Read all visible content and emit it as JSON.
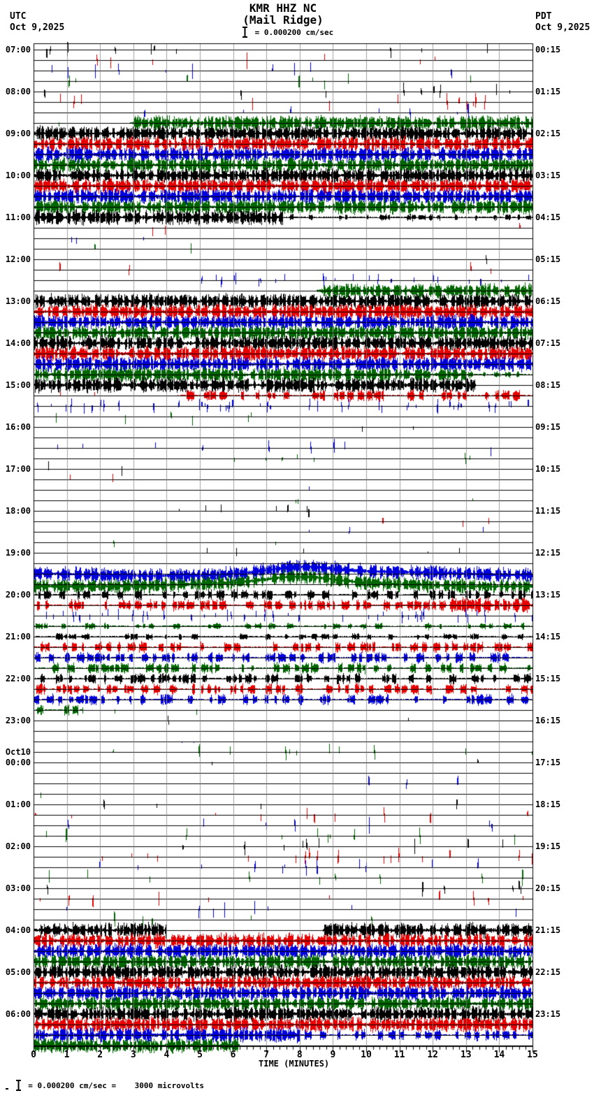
{
  "header": {
    "title_line1": "KMR HHZ NC",
    "title_line2": "(Mail Ridge)",
    "scale_label": "= 0.000200 cm/sec",
    "left_tz": "UTC",
    "left_date": "Oct 9,2025",
    "right_tz": "PDT",
    "right_date": "Oct 9,2025"
  },
  "footer": {
    "scale_label": "= 0.000200 cm/sec =    3000 microvolts"
  },
  "axis": {
    "xlabel": "TIME (MINUTES)",
    "ticks": [
      "0",
      "1",
      "2",
      "3",
      "4",
      "5",
      "6",
      "7",
      "8",
      "9",
      "10",
      "11",
      "12",
      "13",
      "14",
      "15"
    ]
  },
  "colors": {
    "trace_black": "#000000",
    "trace_red": "#e60000",
    "trace_blue": "#0000dd",
    "trace_green": "#006600",
    "grid": "#808080",
    "frame": "#000000"
  },
  "chart_data": {
    "type": "line",
    "subtype": "helicorder-seismogram",
    "station": "KMR HHZ NC",
    "station_name": "Mail Ridge",
    "left_time_zone": "UTC",
    "right_time_zone": "PDT",
    "date_left": "Oct 9,2025",
    "date_right": "Oct 9,2025",
    "amplitude_scale": "0.000200 cm/sec",
    "amplitude_equivalence": "3000 microvolts",
    "xlabel": "TIME (MINUTES)",
    "x_range": [
      0,
      15
    ],
    "minutes_per_row": 15,
    "rows_count": 96,
    "grid": true,
    "color_cycle": [
      "black",
      "red",
      "blue",
      "green"
    ],
    "levels_legend": {
      "f": "flat quiet trace",
      "t": "quiet with rare tiny spikes",
      "s": "scattered telemetry spikes",
      "h": "frequent spikes",
      "m": "moderate bursty noise",
      "a": "strong bursty noise",
      "S": "saturated clipped signal",
      "n": "no data"
    },
    "rows": [
      {
        "seg": [
          [
            0,
            15,
            "s"
          ]
        ],
        "ul": "07:00",
        "rl": "00:15"
      },
      {
        "seg": [
          [
            0,
            15,
            "s"
          ]
        ]
      },
      {
        "seg": [
          [
            0,
            15,
            "s"
          ]
        ]
      },
      {
        "seg": [
          [
            0,
            15,
            "s"
          ]
        ]
      },
      {
        "seg": [
          [
            0,
            15,
            "s"
          ]
        ],
        "ul": "08:00",
        "rl": "01:15"
      },
      {
        "seg": [
          [
            0,
            15,
            "s"
          ]
        ]
      },
      {
        "seg": [
          [
            0,
            15,
            "s"
          ]
        ]
      },
      {
        "seg": [
          [
            0,
            2.9,
            "t"
          ],
          [
            2.9,
            15,
            "S"
          ]
        ]
      },
      {
        "seg": [
          [
            0,
            15,
            "S"
          ]
        ],
        "ul": "09:00",
        "rl": "02:15"
      },
      {
        "seg": [
          [
            0,
            15,
            "S"
          ]
        ]
      },
      {
        "seg": [
          [
            0,
            15,
            "S"
          ]
        ]
      },
      {
        "seg": [
          [
            0,
            15,
            "S"
          ]
        ]
      },
      {
        "seg": [
          [
            0,
            15,
            "S"
          ]
        ],
        "ul": "10:00",
        "rl": "03:15"
      },
      {
        "seg": [
          [
            0,
            15,
            "S"
          ]
        ]
      },
      {
        "seg": [
          [
            0,
            15,
            "S"
          ]
        ]
      },
      {
        "seg": [
          [
            0,
            15,
            "S"
          ]
        ]
      },
      {
        "seg": [
          [
            0,
            7.5,
            "S"
          ],
          [
            7.5,
            15,
            "m"
          ]
        ],
        "ul": "11:00",
        "rl": "04:15"
      },
      {
        "seg": [
          [
            0,
            5,
            "s"
          ],
          [
            5,
            15,
            "t"
          ]
        ]
      },
      {
        "seg": [
          [
            0,
            15,
            "t"
          ]
        ]
      },
      {
        "seg": [
          [
            0,
            15,
            "t"
          ]
        ]
      },
      {
        "seg": [
          [
            0,
            13,
            "f"
          ],
          [
            13,
            15,
            "t"
          ]
        ],
        "ul": "12:00",
        "rl": "05:15"
      },
      {
        "seg": [
          [
            0,
            6,
            "s"
          ],
          [
            6,
            12,
            "t"
          ],
          [
            12,
            14.5,
            "s"
          ],
          [
            14.5,
            15,
            "f"
          ]
        ]
      },
      {
        "seg": [
          [
            0,
            4.8,
            "t"
          ],
          [
            4.8,
            15,
            "h"
          ]
        ]
      },
      {
        "seg": [
          [
            0,
            8.5,
            "f"
          ],
          [
            8.5,
            15,
            "S"
          ]
        ]
      },
      {
        "seg": [
          [
            0,
            15,
            "S"
          ]
        ],
        "ul": "13:00",
        "rl": "06:15"
      },
      {
        "seg": [
          [
            0,
            15,
            "S"
          ]
        ]
      },
      {
        "seg": [
          [
            0,
            15,
            "S"
          ]
        ]
      },
      {
        "seg": [
          [
            0,
            15,
            "S"
          ]
        ]
      },
      {
        "seg": [
          [
            0,
            15,
            "S"
          ]
        ],
        "ul": "14:00",
        "rl": "07:15"
      },
      {
        "seg": [
          [
            0,
            15,
            "S"
          ]
        ]
      },
      {
        "seg": [
          [
            0,
            15,
            "S"
          ]
        ]
      },
      {
        "seg": [
          [
            0,
            13,
            "S"
          ],
          [
            13,
            15,
            "m"
          ]
        ]
      },
      {
        "seg": [
          [
            0,
            13.3,
            "S"
          ],
          [
            13.3,
            15,
            "f"
          ]
        ],
        "ul": "15:00",
        "rl": "08:15"
      },
      {
        "seg": [
          [
            0,
            4.3,
            "t"
          ],
          [
            4.3,
            15,
            "a"
          ]
        ]
      },
      {
        "seg": [
          [
            0,
            15,
            "h"
          ]
        ]
      },
      {
        "seg": [
          [
            0,
            9,
            "s"
          ],
          [
            9,
            15,
            "t"
          ]
        ]
      },
      {
        "seg": [
          [
            0,
            6.5,
            "f"
          ],
          [
            6.5,
            9.5,
            "s"
          ],
          [
            9.5,
            13,
            "t"
          ],
          [
            13,
            15,
            "f"
          ]
        ],
        "ul": "16:00",
        "rl": "09:15"
      },
      {
        "seg": [
          [
            0,
            15,
            "f"
          ]
        ]
      },
      {
        "seg": [
          [
            0,
            7,
            "t"
          ],
          [
            7,
            15,
            "s"
          ]
        ]
      },
      {
        "seg": [
          [
            0,
            15,
            "t"
          ]
        ]
      },
      {
        "seg": [
          [
            0,
            3,
            "s"
          ],
          [
            3,
            15,
            "t"
          ]
        ],
        "ul": "17:00",
        "rl": "10:15"
      },
      {
        "seg": [
          [
            0,
            2,
            "s"
          ],
          [
            2,
            15,
            "t"
          ]
        ]
      },
      {
        "seg": [
          [
            0,
            15,
            "t"
          ]
        ]
      },
      {
        "seg": [
          [
            0,
            15,
            "t"
          ]
        ]
      },
      {
        "seg": [
          [
            0,
            5,
            "t"
          ],
          [
            5,
            13,
            "s"
          ],
          [
            13,
            15,
            "t"
          ]
        ],
        "ul": "18:00",
        "rl": "11:15"
      },
      {
        "seg": [
          [
            0,
            15,
            "t"
          ]
        ]
      },
      {
        "seg": [
          [
            0,
            15,
            "t"
          ]
        ]
      },
      {
        "seg": [
          [
            0,
            15,
            "t"
          ]
        ]
      },
      {
        "seg": [
          [
            0,
            15,
            "t"
          ]
        ],
        "ul": "19:00",
        "rl": "12:15"
      },
      {
        "seg": [
          [
            0,
            15,
            "t"
          ]
        ]
      },
      {
        "seg": [
          [
            0,
            15,
            "S"
          ]
        ],
        "dr": 1
      },
      {
        "seg": [
          [
            0,
            15,
            "S"
          ]
        ],
        "dr": 1
      },
      {
        "seg": [
          [
            0,
            15,
            "a"
          ]
        ],
        "ul": "20:00",
        "rl": "13:15"
      },
      {
        "seg": [
          [
            0,
            12.5,
            "a"
          ],
          [
            12.5,
            15,
            "S"
          ]
        ]
      },
      {
        "seg": [
          [
            0,
            15,
            "h"
          ]
        ]
      },
      {
        "seg": [
          [
            0,
            15,
            "m"
          ]
        ]
      },
      {
        "seg": [
          [
            0,
            15,
            "m"
          ]
        ],
        "ul": "21:00",
        "rl": "14:15"
      },
      {
        "seg": [
          [
            0,
            15,
            "a"
          ]
        ]
      },
      {
        "seg": [
          [
            0,
            15,
            "a"
          ]
        ]
      },
      {
        "seg": [
          [
            0,
            15,
            "a"
          ]
        ]
      },
      {
        "seg": [
          [
            0,
            15,
            "a"
          ]
        ],
        "ul": "22:00",
        "rl": "15:15"
      },
      {
        "seg": [
          [
            0,
            15,
            "a"
          ]
        ]
      },
      {
        "seg": [
          [
            0,
            15,
            "a"
          ]
        ]
      },
      {
        "seg": [
          [
            0,
            1.5,
            "a"
          ],
          [
            1.5,
            15,
            "t"
          ]
        ]
      },
      {
        "seg": [
          [
            0,
            15,
            "t"
          ]
        ],
        "ul": "23:00",
        "rl": "16:15"
      },
      {
        "seg": [
          [
            0,
            15,
            "f"
          ]
        ]
      },
      {
        "seg": [
          [
            0,
            15,
            "f"
          ]
        ]
      },
      {
        "seg": [
          [
            0,
            4,
            "f"
          ],
          [
            4,
            13,
            "s"
          ],
          [
            13,
            15,
            "f"
          ]
        ]
      },
      {
        "seg": [
          [
            0,
            15,
            "t"
          ]
        ],
        "ul": "00:00",
        "ul2": "Oct10",
        "rl": "17:15"
      },
      {
        "seg": [
          [
            0,
            15,
            "f"
          ]
        ]
      },
      {
        "seg": [
          [
            0,
            9.5,
            "f"
          ],
          [
            9.5,
            15,
            "s"
          ]
        ]
      },
      {
        "seg": [
          [
            0,
            2,
            "s"
          ],
          [
            2,
            15,
            "t"
          ]
        ]
      },
      {
        "seg": [
          [
            0,
            1.5,
            "s"
          ],
          [
            1.5,
            15,
            "t"
          ]
        ],
        "ul": "01:00",
        "rl": "18:15"
      },
      {
        "seg": [
          [
            0,
            6,
            "t"
          ],
          [
            6,
            12,
            "s"
          ],
          [
            12,
            15,
            "t"
          ]
        ]
      },
      {
        "seg": [
          [
            0,
            15,
            "s"
          ]
        ]
      },
      {
        "seg": [
          [
            0,
            15,
            "s"
          ]
        ]
      },
      {
        "seg": [
          [
            0,
            15,
            "s"
          ]
        ],
        "ul": "02:00",
        "rl": "19:15"
      },
      {
        "seg": [
          [
            0,
            15,
            "s"
          ]
        ]
      },
      {
        "seg": [
          [
            0,
            15,
            "s"
          ]
        ]
      },
      {
        "seg": [
          [
            0,
            15,
            "s"
          ]
        ]
      },
      {
        "seg": [
          [
            0,
            15,
            "s"
          ]
        ],
        "ul": "03:00",
        "rl": "20:15"
      },
      {
        "seg": [
          [
            0,
            15,
            "s"
          ]
        ]
      },
      {
        "seg": [
          [
            0,
            15,
            "s"
          ]
        ]
      },
      {
        "seg": [
          [
            0,
            4.5,
            "s"
          ],
          [
            4.5,
            13.5,
            "t"
          ],
          [
            13.5,
            15,
            "s"
          ]
        ]
      },
      {
        "seg": [
          [
            0,
            4,
            "S"
          ],
          [
            4,
            8.7,
            "t"
          ],
          [
            8.7,
            15,
            "S"
          ]
        ],
        "ul": "04:00",
        "rl": "21:15"
      },
      {
        "seg": [
          [
            0,
            15,
            "S"
          ]
        ]
      },
      {
        "seg": [
          [
            0,
            15,
            "S"
          ]
        ]
      },
      {
        "seg": [
          [
            0,
            15,
            "S"
          ]
        ]
      },
      {
        "seg": [
          [
            0,
            15,
            "S"
          ]
        ],
        "ul": "05:00",
        "rl": "22:15"
      },
      {
        "seg": [
          [
            0,
            15,
            "S"
          ]
        ]
      },
      {
        "seg": [
          [
            0,
            15,
            "S"
          ]
        ]
      },
      {
        "seg": [
          [
            0,
            15,
            "S"
          ]
        ]
      },
      {
        "seg": [
          [
            0,
            15,
            "S"
          ]
        ],
        "ul": "06:00",
        "rl": "23:15"
      },
      {
        "seg": [
          [
            0,
            15,
            "S"
          ]
        ]
      },
      {
        "seg": [
          [
            0,
            8,
            "S"
          ],
          [
            8,
            15,
            "a"
          ]
        ]
      },
      {
        "seg": [
          [
            0,
            6.2,
            "S"
          ],
          [
            6.2,
            15,
            "n"
          ]
        ]
      }
    ]
  }
}
